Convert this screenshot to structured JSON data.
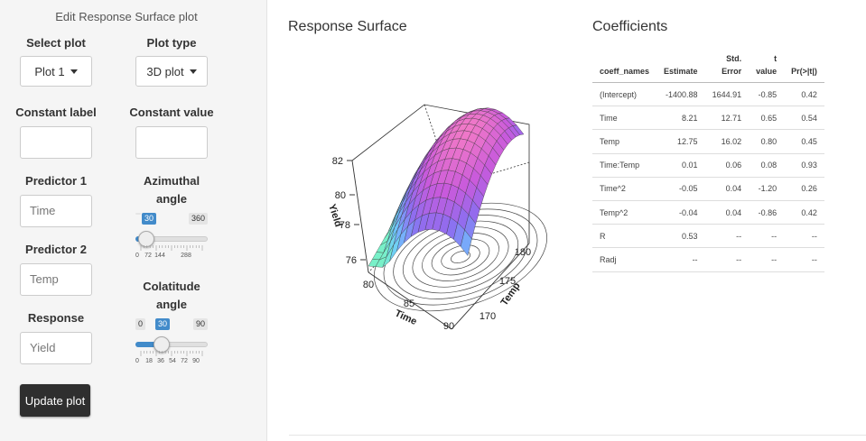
{
  "sidebar": {
    "title": "Edit Response Surface plot",
    "select_plot": {
      "label": "Select plot",
      "value": "Plot 1"
    },
    "plot_type": {
      "label": "Plot type",
      "value": "3D plot"
    },
    "constant_label": {
      "label": "Constant label",
      "value": ""
    },
    "constant_value": {
      "label": "Constant value",
      "value": ""
    },
    "predictor1": {
      "label": "Predictor 1",
      "value": "Time"
    },
    "predictor2": {
      "label": "Predictor 2",
      "value": "Temp"
    },
    "response": {
      "label": "Response",
      "value": "Yield"
    },
    "azimuthal": {
      "label_line1": "Azimuthal",
      "label_line2": "angle",
      "min": 0,
      "max": 360,
      "value": 30,
      "min_text": "",
      "max_text": "360",
      "value_text": "30",
      "tick_labels": [
        "0",
        "72",
        "144",
        "288"
      ]
    },
    "colatitude": {
      "label_line1": "Colatitude",
      "label_line2": "angle",
      "min": 0,
      "max": 90,
      "value": 30,
      "min_text": "0",
      "max_text": "90",
      "value_text": "30",
      "tick_labels": [
        "0",
        "18",
        "36",
        "54",
        "72",
        "90"
      ]
    },
    "update_button": "Update plot"
  },
  "surface": {
    "heading": "Response Surface",
    "z_label": "Yield",
    "x_label": "Time",
    "y_label": "Temp",
    "z_ticks": [
      "82",
      "80",
      "78",
      "76"
    ],
    "x_ticks": [
      "80",
      "85",
      "90"
    ],
    "y_ticks": [
      "180",
      "175",
      "170"
    ]
  },
  "coefficients": {
    "heading": "Coefficients",
    "columns": [
      "coeff_names",
      "Estimate",
      "Std. Error",
      "t value",
      "Pr(>|t|)"
    ],
    "rows": [
      [
        "(Intercept)",
        "-1400.88",
        "1644.91",
        "-0.85",
        "0.42"
      ],
      [
        "Time",
        "8.21",
        "12.71",
        "0.65",
        "0.54"
      ],
      [
        "Temp",
        "12.75",
        "16.02",
        "0.80",
        "0.45"
      ],
      [
        "Time:Temp",
        "0.01",
        "0.06",
        "0.08",
        "0.93"
      ],
      [
        "Time^2",
        "-0.05",
        "0.04",
        "-1.20",
        "0.26"
      ],
      [
        "Temp^2",
        "-0.04",
        "0.04",
        "-0.86",
        "0.42"
      ],
      [
        "R",
        "0.53",
        "--",
        "--",
        "--"
      ],
      [
        "Radj",
        "--",
        "--",
        "--",
        "--"
      ]
    ]
  }
}
